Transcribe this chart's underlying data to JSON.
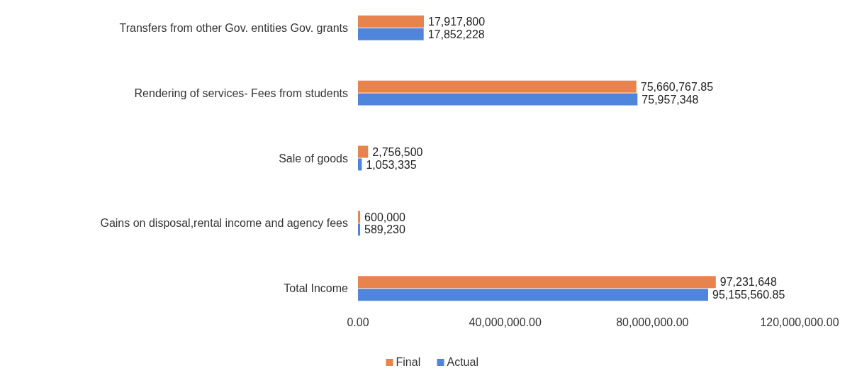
{
  "chart_data": {
    "type": "bar",
    "orientation": "horizontal",
    "categories": [
      "Transfers from other Gov. entities Gov. grants",
      "Rendering of services- Fees from students",
      "Sale of goods",
      "Gains on disposal,rental income and agency fees",
      "Total Income"
    ],
    "series": [
      {
        "name": "Final",
        "color": "#e8834e",
        "values": [
          17917800,
          75660767.85,
          2756500,
          600000,
          97231648
        ],
        "value_labels": [
          "17,917,800",
          "75,660,767.85",
          "2,756,500",
          "600,000",
          "97,231,648"
        ]
      },
      {
        "name": "Actual",
        "color": "#4f86dc",
        "values": [
          17852228,
          75957348,
          1053335,
          589230,
          95155560.85
        ],
        "value_labels": [
          "17,852,228",
          "75,957,348",
          "1,053,335",
          "589,230",
          "95,155,560.85"
        ]
      }
    ],
    "xlim": [
      0,
      120000000
    ],
    "xticks": [
      {
        "value": 0,
        "label": "0.00"
      },
      {
        "value": 40000000,
        "label": "40,000,000.00"
      },
      {
        "value": 80000000,
        "label": "80,000,000.00"
      },
      {
        "value": 120000000,
        "label": "120,000,000.00"
      }
    ],
    "grid": false,
    "legend": "bottom"
  }
}
